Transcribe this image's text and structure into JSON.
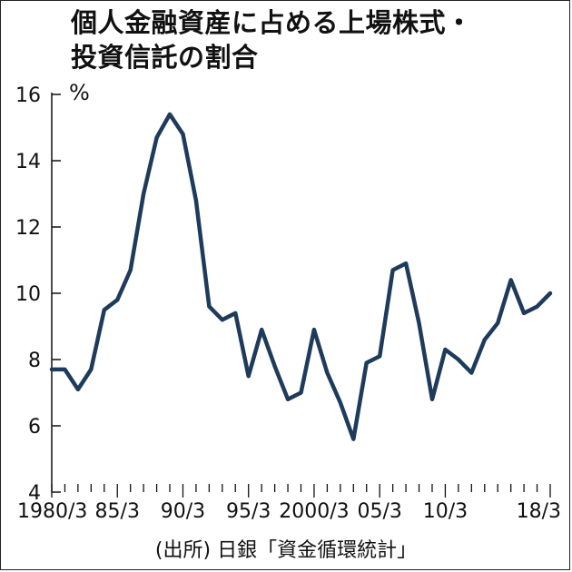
{
  "title_lines": [
    "個人金融資産に占める上場株式・",
    "投資信託の割合"
  ],
  "unit": "%",
  "source": "(出所) 日銀「資金循環統計」",
  "colors": {
    "line": "#1f3b5c",
    "axis": "#111111"
  },
  "chart_data": {
    "type": "line",
    "title": "個人金融資産に占める上場株式・投資信託の割合",
    "ylabel": "%",
    "ylim": [
      4,
      16
    ],
    "yticks": [
      4,
      6,
      8,
      10,
      12,
      14,
      16
    ],
    "xlim": [
      1980,
      2018
    ],
    "xticks": [
      {
        "x": 1980,
        "label": "1980/3"
      },
      {
        "x": 1985,
        "label": "85/3"
      },
      {
        "x": 1990,
        "label": "90/3"
      },
      {
        "x": 1995,
        "label": "95/3"
      },
      {
        "x": 2000,
        "label": "2000/3"
      },
      {
        "x": 2005,
        "label": "05/3"
      },
      {
        "x": 2010,
        "label": "10/3"
      },
      {
        "x": 2018,
        "label": "18/3"
      }
    ],
    "series": [
      {
        "x": [
          1980,
          1981,
          1982,
          1983,
          1984,
          1985,
          1986,
          1987,
          1988,
          1989,
          1990,
          1991,
          1992,
          1993,
          1994,
          1995,
          1996,
          1997,
          1998,
          1999,
          2000,
          2001,
          2002,
          2003,
          2004,
          2005,
          2006,
          2007,
          2008,
          2009,
          2010,
          2011,
          2012,
          2013,
          2014,
          2015,
          2016,
          2017,
          2018
        ],
        "values": [
          7.7,
          7.7,
          7.1,
          7.7,
          9.5,
          9.8,
          10.7,
          13.0,
          14.7,
          15.4,
          14.8,
          12.8,
          9.6,
          9.2,
          9.4,
          7.5,
          8.9,
          7.8,
          6.8,
          7.0,
          8.9,
          7.6,
          6.7,
          5.6,
          7.9,
          8.1,
          10.7,
          10.9,
          9.1,
          6.8,
          8.3,
          8.0,
          7.6,
          8.6,
          9.1,
          10.4,
          9.4,
          9.6,
          10.0
        ]
      }
    ]
  }
}
